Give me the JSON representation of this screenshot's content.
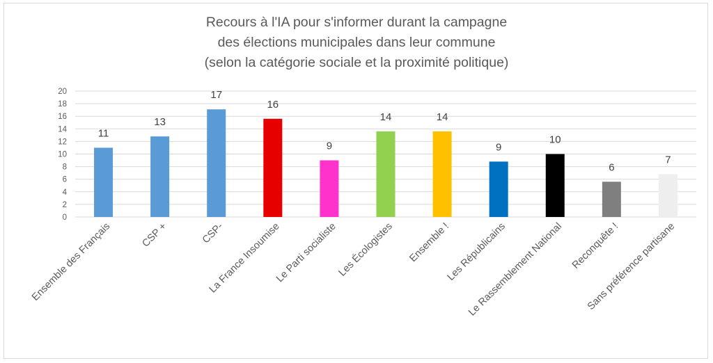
{
  "chart_data": {
    "type": "bar",
    "title_lines": [
      "Recours à l'IA pour s'informer durant la campagne",
      "des élections municipales dans leur commune",
      "(selon la catégorie sociale et la proximité politique)"
    ],
    "xlabel": "",
    "ylabel": "",
    "ylim": [
      0,
      20
    ],
    "yticks": [
      0,
      2,
      4,
      6,
      8,
      10,
      12,
      14,
      16,
      18,
      20
    ],
    "grid": true,
    "categories": [
      "Ensemble des Français",
      "CSP +",
      "CSP-",
      "La France Insoumise",
      "Le Parti socialiste",
      "Les Écologistes",
      "Ensemble !",
      "Les Républicains",
      "Le Rassemblement National",
      "Reconquête !",
      "Sans préférence partisane"
    ],
    "values": [
      11,
      13,
      17,
      16,
      9,
      14,
      14,
      9,
      10,
      6,
      7
    ],
    "bar_heights": [
      11.0,
      12.8,
      17.1,
      15.6,
      9.0,
      13.6,
      13.6,
      8.8,
      10.0,
      5.6,
      6.8
    ],
    "data_labels": [
      "11",
      "13",
      "17",
      "16",
      "9",
      "14",
      "14",
      "9",
      "10",
      "6",
      "7"
    ],
    "colors": [
      "#5b9bd5",
      "#5b9bd5",
      "#5b9bd5",
      "#e60000",
      "#ff33cc",
      "#92d050",
      "#ffc000",
      "#0070c0",
      "#000000",
      "#7f7f7f",
      "#eeeeee"
    ]
  }
}
